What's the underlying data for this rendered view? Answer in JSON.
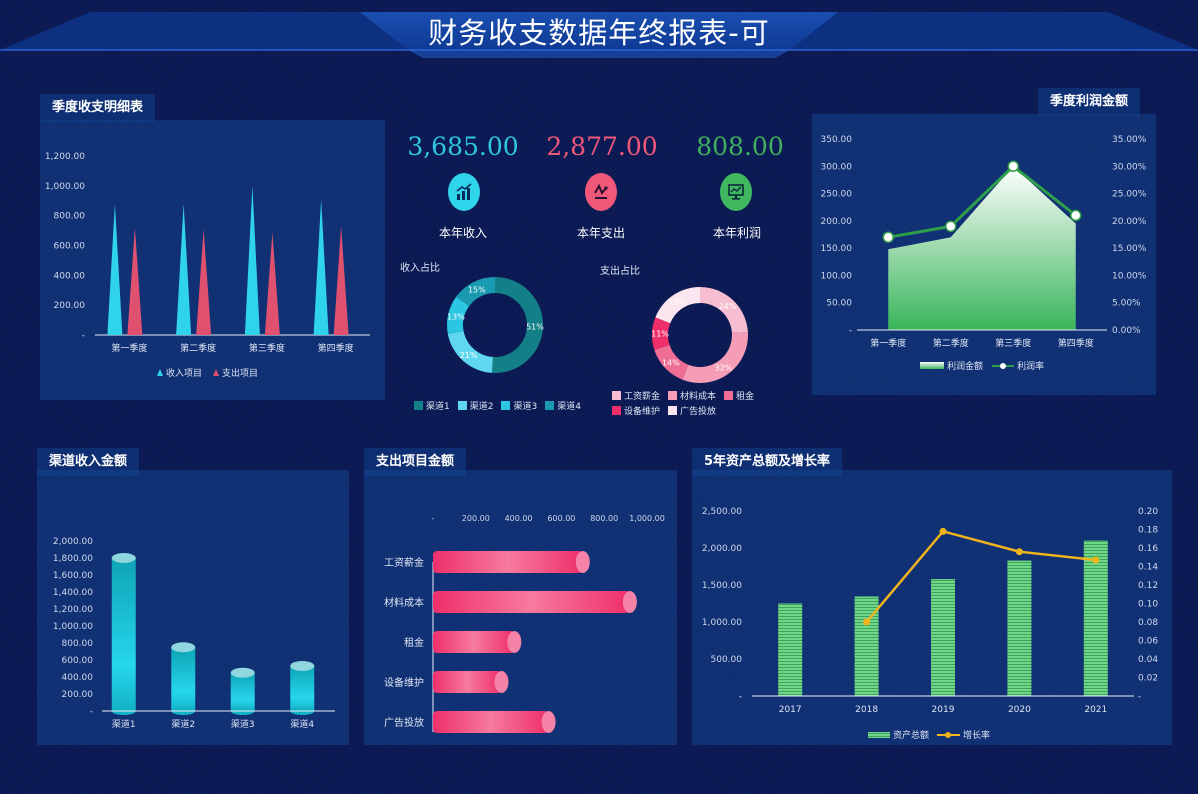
{
  "header": {
    "title": "财务收支数据年终报表-可"
  },
  "kpis": [
    {
      "value": "3,685.00",
      "label": "本年收入",
      "color": "#2fc7e0",
      "icon": "bar-chart-rising-icon"
    },
    {
      "value": "2,877.00",
      "label": "本年支出",
      "color": "#f0587a",
      "icon": "line-chart-down-icon"
    },
    {
      "value": "808.00",
      "label": "本年利润",
      "color": "#3fae5e",
      "icon": "monitor-chart-icon"
    }
  ],
  "panels": {
    "quarterly": {
      "title": "季度收支明细表"
    },
    "profit": {
      "title": "季度利润金额"
    },
    "channel": {
      "title": "渠道收入金额"
    },
    "expense_items": {
      "title": "支出项目金额"
    },
    "assets": {
      "title": "5年资产总额及增长率"
    },
    "income_share": {
      "title": "收入占比"
    },
    "expense_share": {
      "title": "支出占比"
    }
  },
  "chart_data": [
    {
      "id": "quarterly",
      "type": "bar",
      "title": "季度收支明细表",
      "categories": [
        "第一季度",
        "第二季度",
        "第三季度",
        "第四季度"
      ],
      "series": [
        {
          "name": "收入项目",
          "values": [
            880,
            880,
            1000,
            910
          ],
          "color": "#2fd3ea"
        },
        {
          "name": "支出项目",
          "values": [
            720,
            710,
            690,
            730
          ],
          "color": "#e0506f"
        }
      ],
      "y_ticks": [
        "-",
        "200.00",
        "400.00",
        "600.00",
        "800.00",
        "1,000.00",
        "1,200.00"
      ],
      "ylim": [
        0,
        1200
      ]
    },
    {
      "id": "income_share",
      "type": "pie",
      "title": "收入占比",
      "labels": [
        "渠道1",
        "渠道2",
        "渠道3",
        "渠道4"
      ],
      "values": [
        51,
        21,
        13,
        15
      ],
      "display": [
        "51%",
        "21%",
        "13%",
        "15%"
      ],
      "colors": [
        "#137f86",
        "#5fd8ef",
        "#2ac6e3",
        "#1a9ab0"
      ]
    },
    {
      "id": "expense_share",
      "type": "pie",
      "title": "支出占比",
      "labels": [
        "工资薪金",
        "材料成本",
        "租金",
        "设备维护",
        "广告投放"
      ],
      "values": [
        24,
        32,
        14,
        11,
        19
      ],
      "display": [
        "24%",
        "32%",
        "14%",
        "11%",
        "19%"
      ],
      "colors": [
        "#f7bdd0",
        "#f59cb6",
        "#f06d95",
        "#ee2f6c",
        "#fbe5ee"
      ]
    },
    {
      "id": "profit",
      "type": "area",
      "title": "季度利润金额",
      "categories": [
        "第一季度",
        "第二季度",
        "第三季度",
        "第四季度"
      ],
      "series": [
        {
          "name": "利润金额",
          "values": [
            148,
            170,
            300,
            195
          ],
          "axis": "left"
        },
        {
          "name": "利润率",
          "values": [
            17,
            19,
            30,
            21
          ],
          "axis": "right"
        }
      ],
      "y_ticks": [
        "-",
        "50.00",
        "100.00",
        "150.00",
        "200.00",
        "250.00",
        "300.00",
        "350.00"
      ],
      "y2_ticks": [
        "0.00%",
        "5.00%",
        "10.00%",
        "15.00%",
        "20.00%",
        "25.00%",
        "30.00%",
        "35.00%"
      ],
      "ylim": [
        0,
        350
      ],
      "y2lim": [
        0,
        35
      ]
    },
    {
      "id": "channel",
      "type": "bar",
      "title": "渠道收入金额",
      "categories": [
        "渠道1",
        "渠道2",
        "渠道3",
        "渠道4"
      ],
      "values": [
        1800,
        750,
        450,
        530
      ],
      "y_ticks": [
        "-",
        "200.00",
        "400.00",
        "600.00",
        "800.00",
        "1,000.00",
        "1,200.00",
        "1,400.00",
        "1,600.00",
        "1,800.00",
        "2,000.00"
      ],
      "ylim": [
        0,
        2000
      ]
    },
    {
      "id": "expense_items",
      "type": "bar",
      "orientation": "horizontal",
      "title": "支出项目金额",
      "categories": [
        "工资薪金",
        "材料成本",
        "租金",
        "设备维护",
        "广告投放"
      ],
      "values": [
        700,
        920,
        380,
        320,
        540
      ],
      "x_ticks": [
        "-",
        "200.00",
        "400.00",
        "600.00",
        "800.00",
        "1,000.00"
      ],
      "xlim": [
        0,
        1000
      ]
    },
    {
      "id": "assets",
      "type": "bar",
      "title": "5年资产总额及增长率",
      "categories": [
        "2017",
        "2018",
        "2019",
        "2020",
        "2021"
      ],
      "series": [
        {
          "name": "资产总额",
          "values": [
            1250,
            1345,
            1580,
            1830,
            2100
          ],
          "axis": "left",
          "color": "#6fd68a"
        },
        {
          "name": "增长率",
          "values": [
            null,
            0.08,
            0.178,
            0.156,
            0.147
          ],
          "axis": "right",
          "color": "#f2b41c"
        }
      ],
      "y_ticks": [
        "-",
        "500.00",
        "1,000.00",
        "1,500.00",
        "2,000.00",
        "2,500.00"
      ],
      "y2_ticks": [
        "-",
        "0.02",
        "0.04",
        "0.06",
        "0.08",
        "0.10",
        "0.12",
        "0.14",
        "0.16",
        "0.18",
        "0.20"
      ],
      "ylim": [
        0,
        2500
      ],
      "y2lim": [
        0,
        0.2
      ]
    }
  ]
}
